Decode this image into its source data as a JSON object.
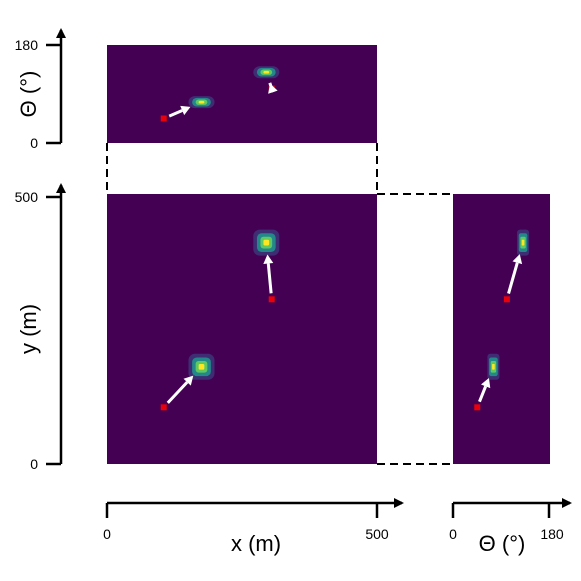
{
  "colors": {
    "background": "#440154",
    "blob_outer": "#3b528b",
    "blob_mid": "#21918c",
    "blob_inner": "#5ec962",
    "blob_core": "#fde725",
    "marker": "#e8000b",
    "arrow": "#ffffff",
    "axis": "#000000"
  },
  "top_panel": {
    "y_axis_label": "Θ (°)",
    "y_ticks": [
      "180",
      "0"
    ]
  },
  "main_panel": {
    "y_axis_label": "y (m)",
    "y_ticks": [
      "500",
      "0"
    ],
    "x_axis_label": "x (m)",
    "x_ticks": [
      "0",
      "500"
    ]
  },
  "side_panel": {
    "x_axis_label": "Θ (°)",
    "x_ticks": [
      "0",
      "180"
    ]
  },
  "chart_data": {
    "type": "scatter",
    "points": [
      {
        "x": 105,
        "y": 105,
        "theta": 45,
        "x_peak": 175,
        "y_peak": 180,
        "theta_peak": 75
      },
      {
        "x": 305,
        "y": 305,
        "theta": 100,
        "x_peak": 295,
        "y_peak": 410,
        "theta_peak": 130
      }
    ],
    "xlim": [
      0,
      500
    ],
    "ylim": [
      0,
      500
    ],
    "theta_lim": [
      0,
      180
    ]
  }
}
